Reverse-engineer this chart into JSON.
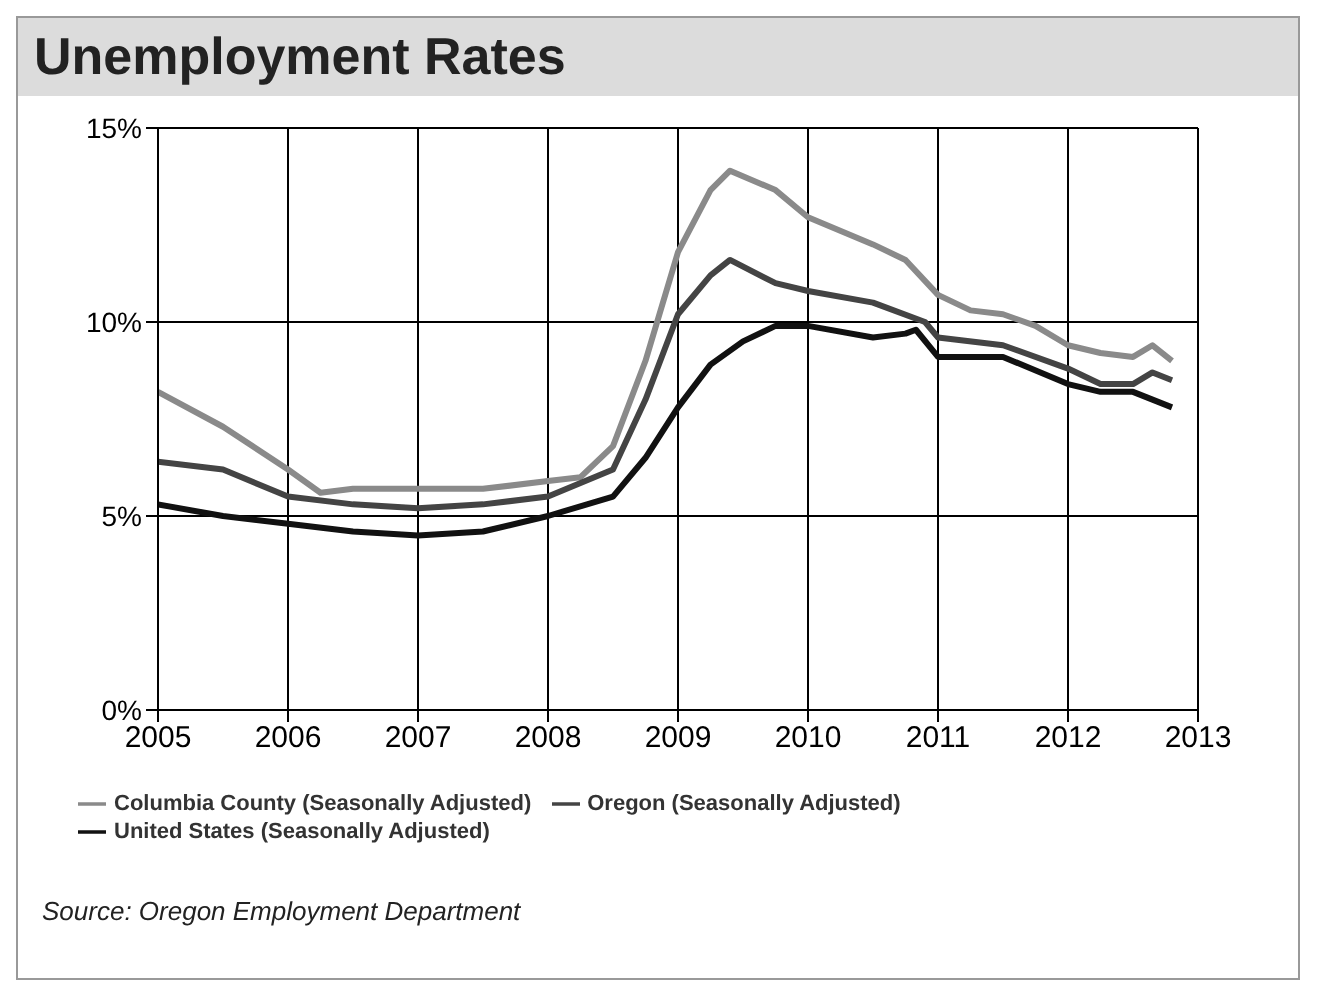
{
  "chart_data": {
    "type": "line",
    "title": "Unemployment Rates",
    "annotations": [
      "Source:  Oregon Employment Department"
    ],
    "xlim": [
      2005,
      2013
    ],
    "xticks": [
      2005,
      2006,
      2007,
      2008,
      2009,
      2010,
      2011,
      2012,
      2013
    ],
    "ylim": [
      0,
      15
    ],
    "yticks": [
      {
        "value": 0,
        "label": "0%"
      },
      {
        "value": 5,
        "label": "5%"
      },
      {
        "value": 10,
        "label": "10%"
      },
      {
        "value": 15,
        "label": "15%"
      }
    ],
    "grid": true,
    "legend": "bottom",
    "marker": "none",
    "line_style": "solid",
    "series": [
      {
        "name": "Columbia County (Seasonally Adjusted)",
        "color": "#8a8a8a",
        "x": [
          2005,
          2005.5,
          2006,
          2006.25,
          2006.5,
          2007,
          2007.5,
          2008,
          2008.25,
          2008.5,
          2008.75,
          2009,
          2009.25,
          2009.4,
          2009.75,
          2010,
          2010.5,
          2010.75,
          2011,
          2011.25,
          2011.5,
          2011.75,
          2012,
          2012.25,
          2012.5,
          2012.65,
          2012.8
        ],
        "values": [
          8.2,
          7.3,
          6.2,
          5.6,
          5.7,
          5.7,
          5.7,
          5.9,
          6.0,
          6.8,
          9.0,
          11.8,
          13.4,
          13.9,
          13.4,
          12.7,
          12.0,
          11.6,
          10.7,
          10.3,
          10.2,
          9.9,
          9.4,
          9.2,
          9.1,
          9.4,
          9.0
        ]
      },
      {
        "name": "United States (Seasonally Adjusted)",
        "color": "#111111",
        "x": [
          2005,
          2005.5,
          2006,
          2006.5,
          2007,
          2007.5,
          2008,
          2008.5,
          2008.75,
          2009,
          2009.25,
          2009.5,
          2009.75,
          2010,
          2010.5,
          2010.75,
          2010.83,
          2011,
          2011.5,
          2012,
          2012.25,
          2012.5,
          2012.65,
          2012.8
        ],
        "values": [
          5.3,
          5.0,
          4.8,
          4.6,
          4.5,
          4.6,
          5.0,
          5.5,
          6.5,
          7.8,
          8.9,
          9.5,
          9.9,
          9.9,
          9.6,
          9.7,
          9.8,
          9.1,
          9.1,
          8.4,
          8.2,
          8.2,
          8.0,
          7.8
        ]
      },
      {
        "name": "Oregon (Seasonally Adjusted)",
        "color": "#444444",
        "x": [
          2005,
          2005.5,
          2006,
          2006.5,
          2007,
          2007.5,
          2008,
          2008.5,
          2008.75,
          2009,
          2009.25,
          2009.4,
          2009.75,
          2010,
          2010.5,
          2010.9,
          2011,
          2011.5,
          2012,
          2012.25,
          2012.5,
          2012.65,
          2012.8
        ],
        "values": [
          6.4,
          6.2,
          5.5,
          5.3,
          5.2,
          5.3,
          5.5,
          6.2,
          8.0,
          10.2,
          11.2,
          11.6,
          11.0,
          10.8,
          10.5,
          10.0,
          9.6,
          9.4,
          8.8,
          8.4,
          8.4,
          8.7,
          8.5
        ]
      }
    ]
  }
}
